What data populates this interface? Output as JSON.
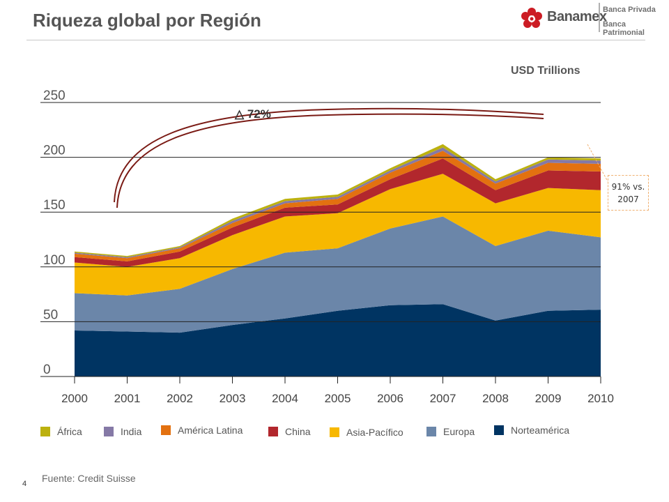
{
  "header": {
    "title": "Riqueza global por Región",
    "brand": "Banamex",
    "brand_line1": "Banca Privada",
    "brand_line2": "Banca Patrimonial"
  },
  "footer": {
    "source": "Fuente: Credit Suisse",
    "page_number": "4"
  },
  "annotations": {
    "growth_symbol": "△",
    "growth_value": "72%",
    "callout": "91% vs. 2007",
    "callout_line1": "91% vs.",
    "callout_line2": "2007"
  },
  "colors": {
    "title": "#555555",
    "arc": "#7a1a14",
    "brand_red": "#cc1c24"
  },
  "chart_data": {
    "type": "area",
    "stacked": true,
    "ylabel": "USD Trillions",
    "ylim": [
      0,
      250
    ],
    "yticks": [
      "0",
      "50",
      "100",
      "150",
      "200",
      "250"
    ],
    "categories": [
      "2000",
      "2001",
      "2002",
      "2003",
      "2004",
      "2005",
      "2006",
      "2007",
      "2008",
      "2009",
      "2010"
    ],
    "series": [
      {
        "name": "Norteamérica",
        "color": "#003462",
        "values": [
          42,
          41,
          40,
          47,
          53,
          60,
          65,
          66,
          51,
          60,
          61
        ]
      },
      {
        "name": "Europa",
        "color": "#6b86a9",
        "values": [
          34,
          33,
          40,
          51,
          60,
          57,
          70,
          80,
          68,
          73,
          66
        ]
      },
      {
        "name": "Asia-Pacífico",
        "color": "#f7b800",
        "values": [
          28,
          26,
          28,
          31,
          33,
          32,
          36,
          39,
          39,
          39,
          43
        ]
      },
      {
        "name": "China",
        "color": "#b2272d",
        "values": [
          5,
          5,
          6,
          7,
          8,
          8,
          9,
          14,
          12,
          16,
          17
        ]
      },
      {
        "name": "América Latina",
        "color": "#e37110",
        "values": [
          3,
          3,
          3,
          4,
          4,
          5,
          6,
          7,
          6,
          7,
          7
        ]
      },
      {
        "name": "India",
        "color": "#8579a6",
        "values": [
          1,
          1,
          1,
          2,
          2,
          2,
          2,
          3,
          2,
          3,
          3
        ]
      },
      {
        "name": "África",
        "color": "#bcb10f",
        "values": [
          1,
          1,
          1,
          2,
          2,
          2,
          2,
          3,
          2,
          2,
          2
        ]
      }
    ],
    "legend": {
      "placement": "bottom",
      "order": [
        "África",
        "India",
        "América Latina",
        "China",
        "Asia-Pacífico",
        "Europa",
        "Norteamérica"
      ]
    },
    "grid": true
  }
}
